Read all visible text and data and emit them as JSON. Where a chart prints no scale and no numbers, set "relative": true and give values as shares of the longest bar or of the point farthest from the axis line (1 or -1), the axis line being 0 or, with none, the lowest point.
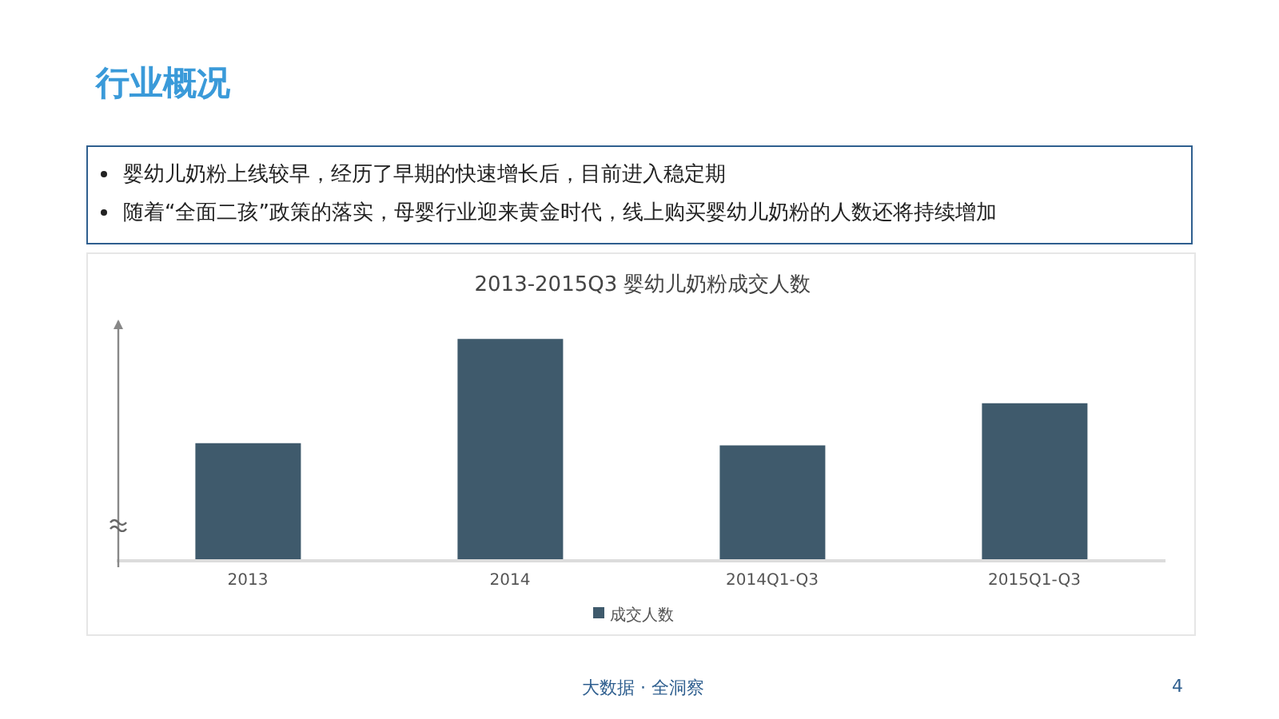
{
  "chart_data": {
    "type": "bar",
    "title": "2013-2015Q3 婴幼儿奶粉成交人数",
    "categories": [
      "2013",
      "2014",
      "2014Q1-Q3",
      "2015Q1-Q3"
    ],
    "series": [
      {
        "name": "成交人数",
        "color": "#3f5a6c",
        "values": [
          0.53,
          1,
          0.52,
          0.71
        ]
      }
    ],
    "relative": true,
    "legend": "bottom",
    "grid": false,
    "annotations": [
      "行业概况",
      "婴幼儿奶粉上线较早，经历了早期的快速增长后，目前进入稳定期",
      "随着“全面二孩”政策的落实，母婴行业迎来黄金时代，线上购买婴幼儿奶粉的人数还将持续增加",
      "大数据 · 全洞察",
      "4"
    ]
  }
}
